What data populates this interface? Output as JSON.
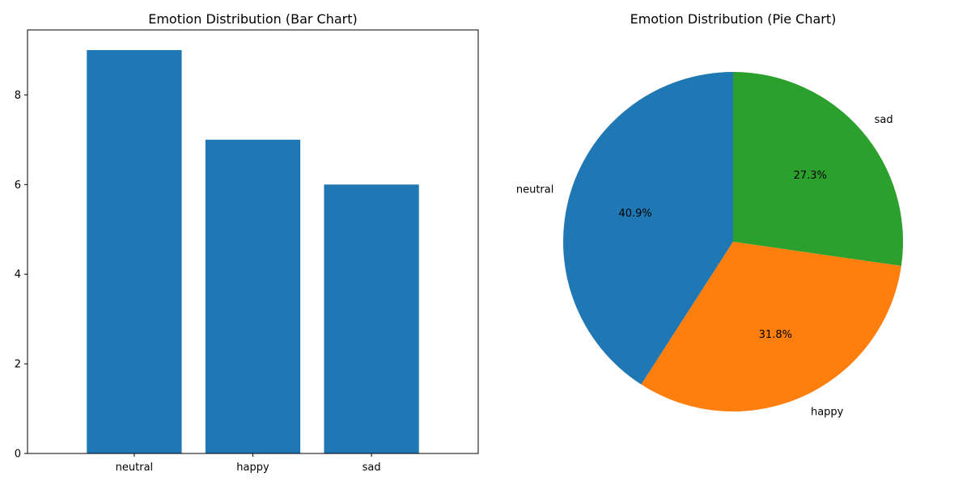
{
  "chart_data": [
    {
      "type": "bar",
      "title": "Emotion Distribution (Bar Chart)",
      "categories": [
        "neutral",
        "happy",
        "sad"
      ],
      "values": [
        9,
        7,
        6
      ],
      "yticks": [
        0,
        2,
        4,
        6,
        8
      ],
      "ylim": [
        0,
        9.45
      ],
      "color": "#1f77b4",
      "xlabel": "",
      "ylabel": ""
    },
    {
      "type": "pie",
      "title": "Emotion Distribution (Pie Chart)",
      "labels": [
        "neutral",
        "happy",
        "sad"
      ],
      "values": [
        9,
        7,
        6
      ],
      "percent_labels": [
        "40.9%",
        "31.8%",
        "27.3%"
      ],
      "colors": [
        "#1f77b4",
        "#ff7f0e",
        "#2ca02c"
      ],
      "start_angle_deg": 90
    }
  ]
}
